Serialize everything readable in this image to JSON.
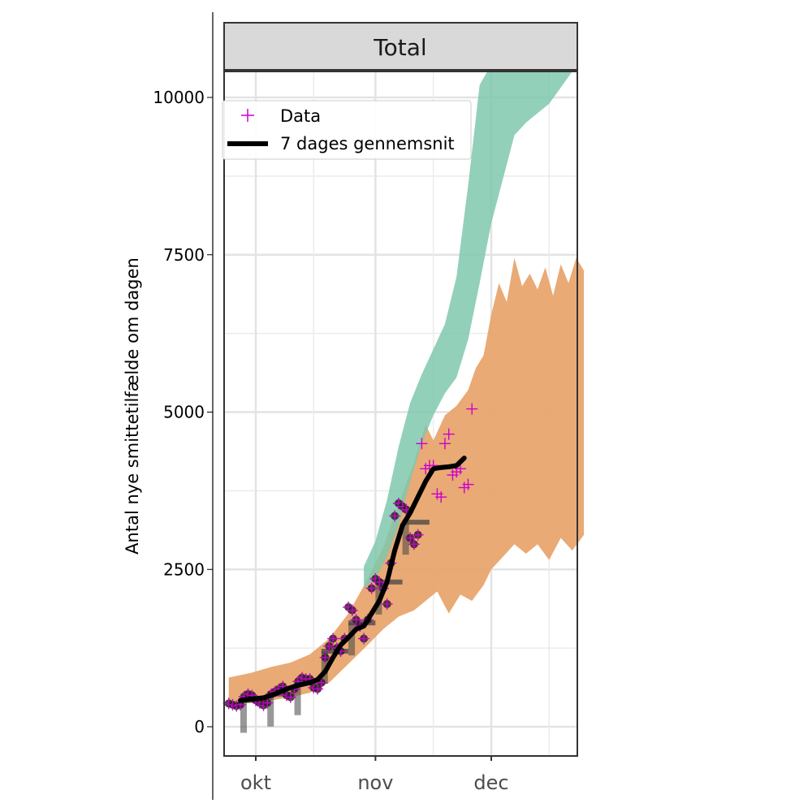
{
  "chart_data": {
    "type": "line",
    "panel_title": "Total",
    "ylabel": "Antal nye smittetilfælde om dagen",
    "xlabel": "",
    "ylim": [
      -500,
      11200
    ],
    "y_ticks": [
      0,
      2500,
      5000,
      7500,
      10000
    ],
    "y_tick_labels": [
      "0",
      "2500",
      "5000",
      "7500",
      "10000"
    ],
    "x_range": [
      "2021-09-24",
      "2021-12-25"
    ],
    "x_ticks": [
      "2021-10-01",
      "2021-11-01",
      "2021-12-01"
    ],
    "x_tick_labels": [
      "okt",
      "nov",
      "dec"
    ],
    "grid": true,
    "legend": {
      "position": "top-left",
      "entries": [
        {
          "label": "Data",
          "marker": "plus",
          "color": "#cc00cc"
        },
        {
          "label": "7 dages gennemsnit",
          "marker": "line",
          "color": "#000000"
        }
      ]
    },
    "colors": {
      "data_marker": "#cc00cc",
      "avg_line": "#000000",
      "band_orange": "#e8a56e",
      "band_green": "#7fc8ad",
      "weekly_bar": "#444444",
      "strip_bg": "#d9d9d9"
    },
    "bands": [
      {
        "color": "#e8a56e",
        "upper": [
          [
            "2021-09-24",
            780
          ],
          [
            "2021-09-30",
            860
          ],
          [
            "2021-10-05",
            950
          ],
          [
            "2021-10-10",
            1020
          ],
          [
            "2021-10-15",
            1150
          ],
          [
            "2021-10-20",
            1400
          ],
          [
            "2021-10-25",
            1800
          ],
          [
            "2021-10-30",
            2350
          ],
          [
            "2021-11-03",
            2850
          ],
          [
            "2021-11-07",
            3550
          ],
          [
            "2021-11-11",
            4200
          ],
          [
            "2021-11-14",
            4800
          ],
          [
            "2021-11-16",
            4550
          ],
          [
            "2021-11-19",
            4950
          ],
          [
            "2021-11-22",
            5100
          ],
          [
            "2021-11-25",
            5350
          ],
          [
            "2021-11-27",
            5700
          ],
          [
            "2021-11-29",
            5900
          ],
          [
            "2021-12-01",
            6550
          ],
          [
            "2021-12-03",
            7050
          ],
          [
            "2021-12-05",
            6750
          ],
          [
            "2021-12-07",
            7450
          ],
          [
            "2021-12-09",
            7000
          ],
          [
            "2021-12-11",
            7200
          ],
          [
            "2021-12-13",
            6950
          ],
          [
            "2021-12-15",
            7300
          ],
          [
            "2021-12-17",
            6850
          ],
          [
            "2021-12-19",
            7350
          ],
          [
            "2021-12-21",
            7050
          ],
          [
            "2021-12-23",
            7450
          ],
          [
            "2021-12-25",
            7250
          ]
        ],
        "lower": [
          [
            "2021-09-24",
            350
          ],
          [
            "2021-09-30",
            380
          ],
          [
            "2021-10-05",
            420
          ],
          [
            "2021-10-10",
            470
          ],
          [
            "2021-10-15",
            540
          ],
          [
            "2021-10-20",
            700
          ],
          [
            "2021-10-25",
            1000
          ],
          [
            "2021-10-30",
            1300
          ],
          [
            "2021-11-03",
            1550
          ],
          [
            "2021-11-07",
            1750
          ],
          [
            "2021-11-11",
            1850
          ],
          [
            "2021-11-14",
            2000
          ],
          [
            "2021-11-17",
            2150
          ],
          [
            "2021-11-20",
            1800
          ],
          [
            "2021-11-23",
            2100
          ],
          [
            "2021-11-26",
            2000
          ],
          [
            "2021-11-29",
            2250
          ],
          [
            "2021-12-01",
            2500
          ],
          [
            "2021-12-04",
            2700
          ],
          [
            "2021-12-07",
            2900
          ],
          [
            "2021-12-10",
            2750
          ],
          [
            "2021-12-13",
            2900
          ],
          [
            "2021-12-16",
            2650
          ],
          [
            "2021-12-19",
            3000
          ],
          [
            "2021-12-22",
            2800
          ],
          [
            "2021-12-25",
            3050
          ]
        ]
      },
      {
        "color": "#7fc8ad",
        "upper": [
          [
            "2021-10-29",
            2550
          ],
          [
            "2021-11-01",
            2950
          ],
          [
            "2021-11-04",
            3600
          ],
          [
            "2021-11-07",
            4450
          ],
          [
            "2021-11-10",
            5150
          ],
          [
            "2021-11-13",
            5600
          ],
          [
            "2021-11-16",
            6000
          ],
          [
            "2021-11-19",
            6400
          ],
          [
            "2021-11-22",
            7150
          ],
          [
            "2021-11-25",
            8600
          ],
          [
            "2021-11-28",
            10200
          ],
          [
            "2021-11-30",
            10700
          ],
          [
            "2021-12-25",
            10700
          ]
        ],
        "lower": [
          [
            "2021-12-25",
            10450
          ],
          [
            "2021-12-22",
            10450
          ],
          [
            "2021-12-16",
            9900
          ],
          [
            "2021-12-10",
            9600
          ],
          [
            "2021-12-07",
            9400
          ],
          [
            "2021-12-04",
            8700
          ],
          [
            "2021-12-01",
            8000
          ],
          [
            "2021-11-28",
            7050
          ],
          [
            "2021-11-25",
            6150
          ],
          [
            "2021-11-22",
            5550
          ],
          [
            "2021-11-19",
            5300
          ],
          [
            "2021-11-16",
            4950
          ],
          [
            "2021-11-13",
            4500
          ],
          [
            "2021-11-10",
            3900
          ],
          [
            "2021-11-07",
            3200
          ],
          [
            "2021-11-04",
            2700
          ],
          [
            "2021-11-01",
            2350
          ],
          [
            "2021-10-29",
            2200
          ]
        ]
      }
    ],
    "weekly_bars": [
      {
        "start": "2021-09-27",
        "end": "2021-10-03",
        "value": 420
      },
      {
        "start": "2021-10-04",
        "end": "2021-10-10",
        "value": 520
      },
      {
        "start": "2021-10-11",
        "end": "2021-10-17",
        "value": 700
      },
      {
        "start": "2021-10-18",
        "end": "2021-10-24",
        "value": 1200
      },
      {
        "start": "2021-10-25",
        "end": "2021-10-31",
        "value": 1650
      },
      {
        "start": "2021-11-01",
        "end": "2021-11-07",
        "value": 2300
      },
      {
        "start": "2021-11-08",
        "end": "2021-11-14",
        "value": 3250
      }
    ],
    "series": [
      {
        "name": "Data",
        "type": "scatter",
        "points": [
          [
            "2021-09-24",
            370
          ],
          [
            "2021-09-25",
            350
          ],
          [
            "2021-09-26",
            330
          ],
          [
            "2021-09-27",
            350
          ],
          [
            "2021-09-28",
            480
          ],
          [
            "2021-09-29",
            520
          ],
          [
            "2021-09-30",
            500
          ],
          [
            "2021-10-01",
            420
          ],
          [
            "2021-10-02",
            380
          ],
          [
            "2021-10-03",
            340
          ],
          [
            "2021-10-04",
            380
          ],
          [
            "2021-10-05",
            520
          ],
          [
            "2021-10-06",
            560
          ],
          [
            "2021-10-07",
            600
          ],
          [
            "2021-10-08",
            640
          ],
          [
            "2021-10-09",
            500
          ],
          [
            "2021-10-10",
            470
          ],
          [
            "2021-10-11",
            600
          ],
          [
            "2021-10-12",
            720
          ],
          [
            "2021-10-13",
            780
          ],
          [
            "2021-10-14",
            760
          ],
          [
            "2021-10-15",
            760
          ],
          [
            "2021-10-16",
            620
          ],
          [
            "2021-10-17",
            600
          ],
          [
            "2021-10-18",
            700
          ],
          [
            "2021-10-19",
            1100
          ],
          [
            "2021-10-20",
            1280
          ],
          [
            "2021-10-21",
            1400
          ],
          [
            "2021-10-22",
            1250
          ],
          [
            "2021-10-23",
            1200
          ],
          [
            "2021-10-24",
            1400
          ],
          [
            "2021-10-25",
            1900
          ],
          [
            "2021-10-26",
            1850
          ],
          [
            "2021-10-27",
            1700
          ],
          [
            "2021-10-28",
            1600
          ],
          [
            "2021-10-29",
            1400
          ],
          [
            "2021-10-30",
            1700
          ],
          [
            "2021-10-31",
            2200
          ],
          [
            "2021-11-01",
            2350
          ],
          [
            "2021-11-02",
            2300
          ],
          [
            "2021-11-03",
            2200
          ],
          [
            "2021-11-04",
            1950
          ],
          [
            "2021-11-05",
            2600
          ],
          [
            "2021-11-06",
            3350
          ],
          [
            "2021-11-07",
            3550
          ],
          [
            "2021-11-08",
            3500
          ],
          [
            "2021-11-09",
            3450
          ],
          [
            "2021-11-10",
            3000
          ],
          [
            "2021-11-11",
            2900
          ],
          [
            "2021-11-12",
            3050
          ],
          [
            "2021-11-13",
            4500
          ],
          [
            "2021-11-14",
            4100
          ],
          [
            "2021-11-15",
            4150
          ],
          [
            "2021-11-16",
            4150
          ],
          [
            "2021-11-17",
            3700
          ],
          [
            "2021-11-18",
            3650
          ],
          [
            "2021-11-19",
            4500
          ],
          [
            "2021-11-20",
            4650
          ],
          [
            "2021-11-21",
            4000
          ],
          [
            "2021-11-22",
            4050
          ],
          [
            "2021-11-23",
            4100
          ],
          [
            "2021-11-24",
            3800
          ],
          [
            "2021-11-25",
            3850
          ],
          [
            "2021-11-26",
            5050
          ]
        ]
      },
      {
        "name": "7 dages gennemsnit",
        "type": "line",
        "points": [
          [
            "2021-09-27",
            420
          ],
          [
            "2021-09-30",
            440
          ],
          [
            "2021-10-03",
            460
          ],
          [
            "2021-10-06",
            520
          ],
          [
            "2021-10-09",
            600
          ],
          [
            "2021-10-12",
            660
          ],
          [
            "2021-10-15",
            700
          ],
          [
            "2021-10-17",
            750
          ],
          [
            "2021-10-19",
            880
          ],
          [
            "2021-10-21",
            1100
          ],
          [
            "2021-10-23",
            1300
          ],
          [
            "2021-10-25",
            1420
          ],
          [
            "2021-10-27",
            1550
          ],
          [
            "2021-10-29",
            1600
          ],
          [
            "2021-10-31",
            1800
          ],
          [
            "2021-11-02",
            2000
          ],
          [
            "2021-11-04",
            2300
          ],
          [
            "2021-11-06",
            2800
          ],
          [
            "2021-11-08",
            3200
          ],
          [
            "2021-11-10",
            3400
          ],
          [
            "2021-11-12",
            3650
          ],
          [
            "2021-11-14",
            3900
          ],
          [
            "2021-11-16",
            4100
          ],
          [
            "2021-11-18",
            4120
          ],
          [
            "2021-11-20",
            4130
          ],
          [
            "2021-11-22",
            4150
          ],
          [
            "2021-11-24",
            4270
          ]
        ]
      }
    ]
  }
}
